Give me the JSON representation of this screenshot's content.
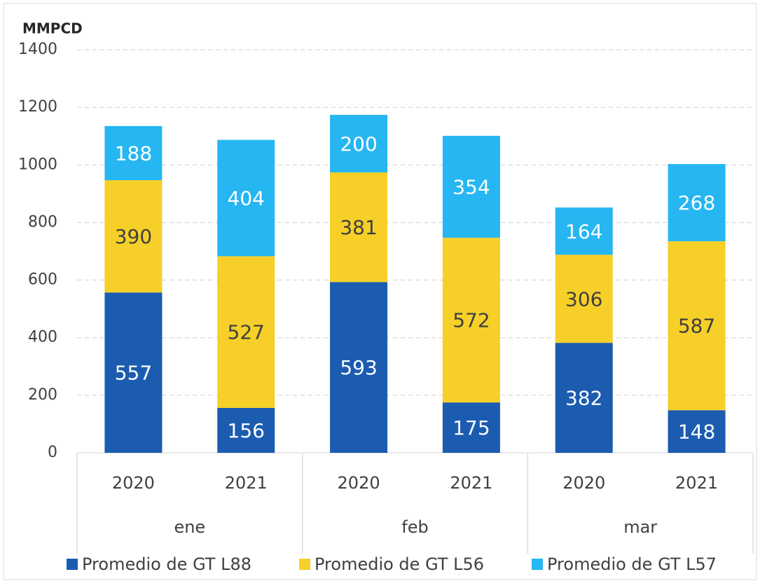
{
  "chart_data": {
    "type": "stacked_bar",
    "y_label": "MMPCD",
    "categories": [
      "2020",
      "2021",
      "2020",
      "2021",
      "2020",
      "2021"
    ],
    "groups": [
      "ene",
      "feb",
      "mar"
    ],
    "series": [
      {
        "name": "Promedio de GT L88",
        "color": "#1c5cb0",
        "label_color": "#ffffff",
        "values": [
          557,
          156,
          593,
          175,
          382,
          148
        ]
      },
      {
        "name": "Promedio de GT L56",
        "color": "#f6d028",
        "label_color": "#404040",
        "values": [
          390,
          527,
          381,
          572,
          306,
          587
        ]
      },
      {
        "name": "Promedio de GT L57",
        "color": "#26b6f2",
        "label_color": "#ffffff",
        "values": [
          188,
          404,
          200,
          354,
          164,
          268
        ]
      }
    ],
    "ylim": [
      0,
      1400
    ],
    "yticks": [
      0,
      200,
      400,
      600,
      800,
      1000,
      1200,
      1400
    ],
    "grid": true,
    "legend": "bottom"
  }
}
